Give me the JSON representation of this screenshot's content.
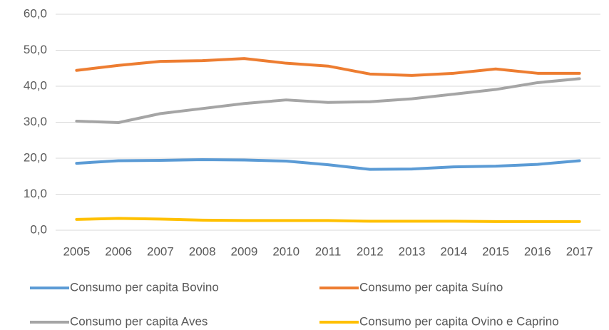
{
  "chart_data": {
    "type": "line",
    "categories": [
      "2005",
      "2006",
      "2007",
      "2008",
      "2009",
      "2010",
      "2011",
      "2012",
      "2013",
      "2014",
      "2015",
      "2016",
      "2017"
    ],
    "series": [
      {
        "name": "Consumo per capita Bovino",
        "color": "#5b9bd5",
        "values": [
          18.6,
          19.3,
          19.4,
          19.6,
          19.5,
          19.2,
          18.2,
          16.9,
          17.0,
          17.6,
          17.8,
          18.3,
          19.3
        ]
      },
      {
        "name": "Consumo per capita Suíno",
        "color": "#ed7d31",
        "values": [
          44.4,
          45.8,
          46.9,
          47.1,
          47.7,
          46.4,
          45.6,
          43.4,
          43.0,
          43.6,
          44.8,
          43.6,
          43.6
        ]
      },
      {
        "name": "Consumo per capita Aves",
        "color": "#a5a5a5",
        "values": [
          30.3,
          29.9,
          32.4,
          33.8,
          35.2,
          36.2,
          35.5,
          35.7,
          36.5,
          37.8,
          39.1,
          41.0,
          42.1
        ]
      },
      {
        "name": "Consumo per capita Ovino e Caprino",
        "color": "#ffc000",
        "values": [
          3.0,
          3.3,
          3.1,
          2.8,
          2.7,
          2.7,
          2.7,
          2.5,
          2.5,
          2.5,
          2.4,
          2.4,
          2.4
        ]
      }
    ],
    "ylim": [
      0,
      60
    ],
    "yticks": [
      {
        "value": 0,
        "label": "0,0"
      },
      {
        "value": 10,
        "label": "10,0"
      },
      {
        "value": 20,
        "label": "20,0"
      },
      {
        "value": 30,
        "label": "30,0"
      },
      {
        "value": 40,
        "label": "40,0"
      },
      {
        "value": 50,
        "label": "50,0"
      },
      {
        "value": 60,
        "label": "60,0"
      }
    ],
    "grid": true,
    "legend": "bottom"
  }
}
